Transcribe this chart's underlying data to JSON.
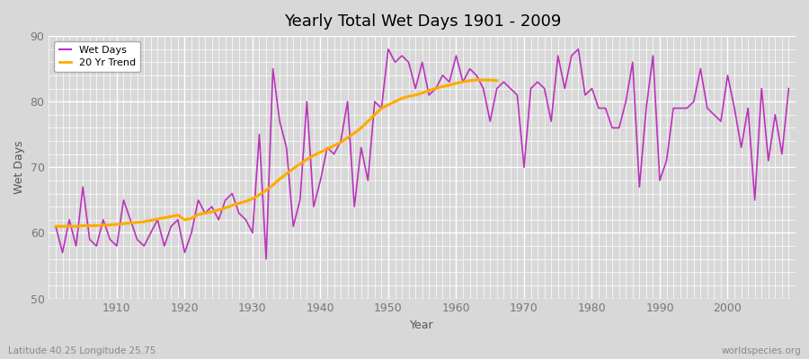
{
  "title": "Yearly Total Wet Days 1901 - 2009",
  "xlabel": "Year",
  "ylabel": "Wet Days",
  "bottom_left_label": "Latitude 40.25 Longitude 25.75",
  "bottom_right_label": "worldspecies.org",
  "ylim": [
    50,
    90
  ],
  "yticks": [
    50,
    60,
    70,
    80,
    90
  ],
  "xlim": [
    1900,
    2010
  ],
  "xticks": [
    1910,
    1920,
    1930,
    1940,
    1950,
    1960,
    1970,
    1980,
    1990,
    2000
  ],
  "background_color": "#d8d8d8",
  "plot_bg_color": "#d8d8d8",
  "line_color": "#bb33bb",
  "trend_color": "#ffaa00",
  "legend_items": [
    "Wet Days",
    "20 Yr Trend"
  ],
  "years": [
    1901,
    1902,
    1903,
    1904,
    1905,
    1906,
    1907,
    1908,
    1909,
    1910,
    1911,
    1912,
    1913,
    1914,
    1915,
    1916,
    1917,
    1918,
    1919,
    1920,
    1921,
    1922,
    1923,
    1924,
    1925,
    1926,
    1927,
    1928,
    1929,
    1930,
    1931,
    1932,
    1933,
    1934,
    1935,
    1936,
    1937,
    1938,
    1939,
    1940,
    1941,
    1942,
    1943,
    1944,
    1945,
    1946,
    1947,
    1948,
    1949,
    1950,
    1951,
    1952,
    1953,
    1954,
    1955,
    1956,
    1957,
    1958,
    1959,
    1960,
    1961,
    1962,
    1963,
    1964,
    1965,
    1966,
    1967,
    1968,
    1969,
    1970,
    1971,
    1972,
    1973,
    1974,
    1975,
    1976,
    1977,
    1978,
    1979,
    1980,
    1981,
    1982,
    1983,
    1984,
    1985,
    1986,
    1987,
    1988,
    1989,
    1990,
    1991,
    1992,
    1993,
    1994,
    1995,
    1996,
    1997,
    1998,
    1999,
    2000,
    2001,
    2002,
    2003,
    2004,
    2005,
    2006,
    2007,
    2008,
    2009
  ],
  "wet_days": [
    61,
    57,
    62,
    58,
    67,
    59,
    58,
    62,
    59,
    58,
    65,
    62,
    59,
    58,
    60,
    62,
    58,
    61,
    62,
    57,
    60,
    65,
    63,
    64,
    62,
    65,
    66,
    63,
    62,
    60,
    75,
    56,
    85,
    77,
    73,
    61,
    65,
    80,
    64,
    68,
    73,
    72,
    74,
    80,
    64,
    73,
    68,
    80,
    79,
    88,
    86,
    87,
    86,
    82,
    86,
    81,
    82,
    84,
    83,
    87,
    83,
    85,
    84,
    82,
    77,
    82,
    83,
    82,
    81,
    70,
    82,
    83,
    82,
    77,
    87,
    82,
    87,
    88,
    81,
    82,
    79,
    79,
    76,
    76,
    80,
    86,
    67,
    79,
    87,
    68,
    71,
    79,
    79,
    79,
    80,
    85,
    79,
    78,
    77,
    84,
    79,
    73,
    79,
    65,
    82,
    71,
    78,
    72,
    82
  ],
  "trend_years": [
    1901,
    1902,
    1903,
    1904,
    1905,
    1906,
    1907,
    1908,
    1909,
    1910,
    1911,
    1912,
    1913,
    1914,
    1915,
    1916,
    1917,
    1918,
    1919,
    1920,
    1921,
    1922,
    1923,
    1924,
    1925,
    1926,
    1927,
    1928,
    1929,
    1930,
    1931,
    1932,
    1933,
    1934,
    1935,
    1936,
    1937,
    1938,
    1939,
    1940,
    1941,
    1942,
    1943,
    1944,
    1945,
    1946,
    1947,
    1948,
    1949,
    1950,
    1951,
    1952,
    1953,
    1954,
    1955,
    1956,
    1957,
    1958,
    1959,
    1960,
    1961,
    1962,
    1963,
    1964,
    1965,
    1966
  ],
  "trend_values": [
    61.0,
    61.0,
    61.0,
    61.0,
    61.1,
    61.1,
    61.1,
    61.2,
    61.2,
    61.3,
    61.4,
    61.5,
    61.6,
    61.7,
    61.9,
    62.1,
    62.3,
    62.5,
    62.7,
    62.0,
    62.2,
    62.8,
    63.0,
    63.2,
    63.5,
    63.8,
    64.2,
    64.5,
    64.8,
    65.2,
    65.8,
    66.5,
    67.3,
    68.2,
    69.0,
    69.8,
    70.5,
    71.2,
    71.8,
    72.3,
    72.8,
    73.3,
    73.8,
    74.5,
    75.2,
    76.0,
    77.0,
    78.0,
    79.0,
    79.5,
    80.0,
    80.5,
    80.8,
    81.0,
    81.3,
    81.7,
    82.0,
    82.3,
    82.5,
    82.8,
    83.0,
    83.2,
    83.3,
    83.3,
    83.3,
    83.2
  ]
}
